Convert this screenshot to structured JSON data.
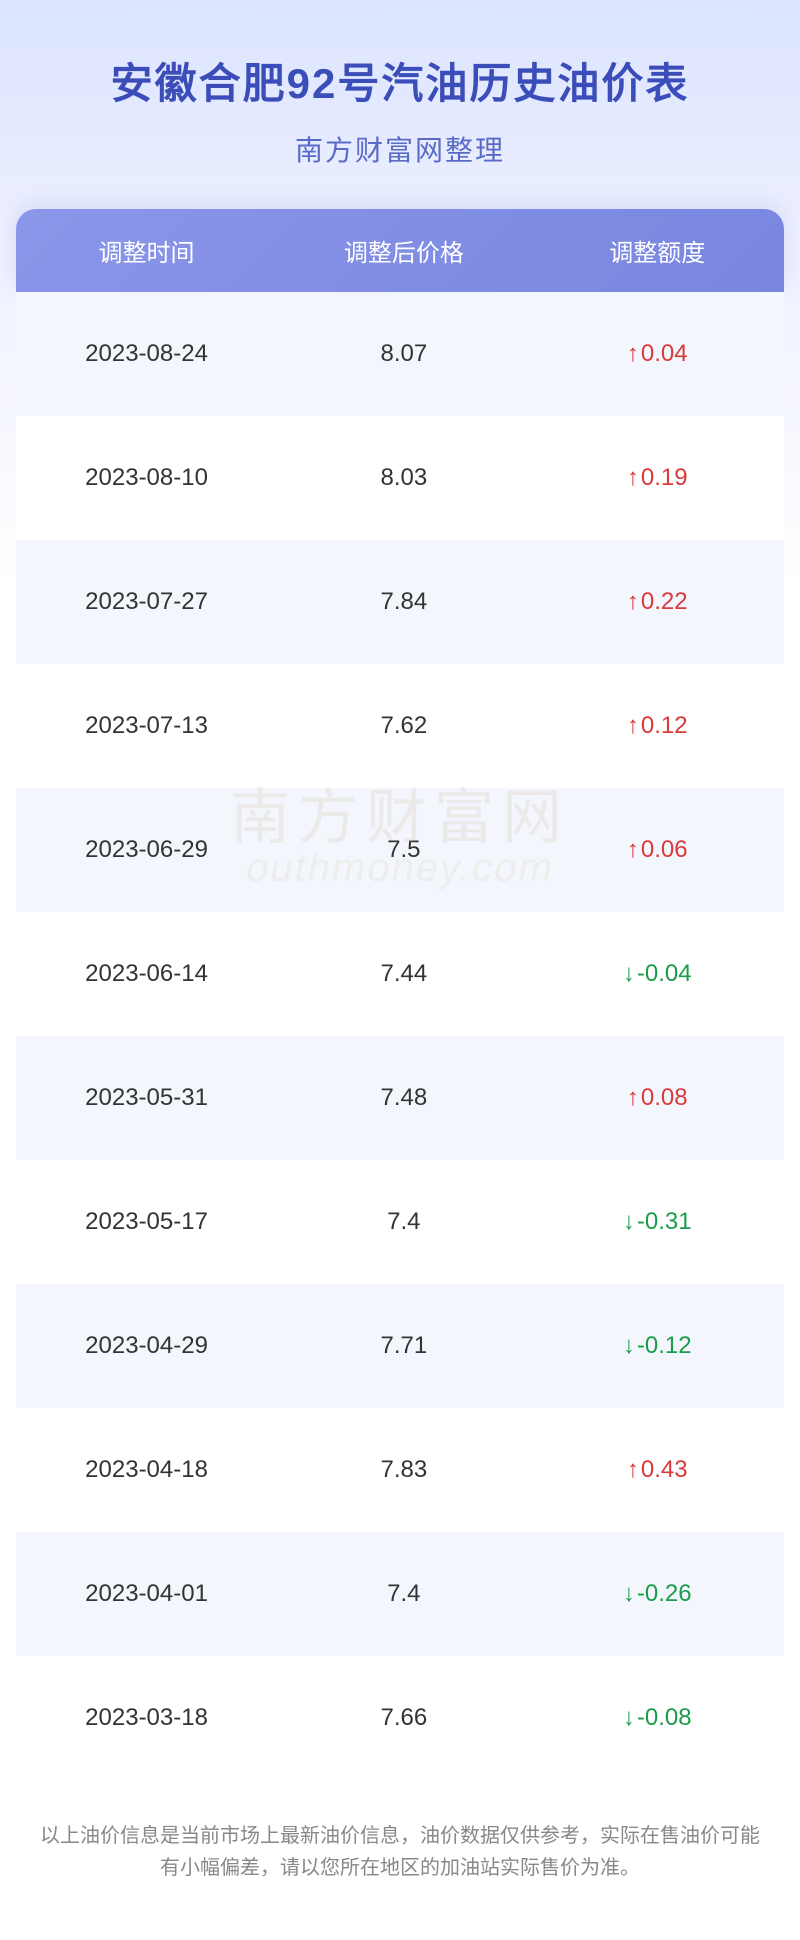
{
  "header": {
    "title": "安徽合肥92号汽油历史油价表",
    "subtitle": "南方财富网整理"
  },
  "table": {
    "columns": {
      "date": "调整时间",
      "price": "调整后价格",
      "change": "调整额度"
    },
    "rows": [
      {
        "date": "2023-08-24",
        "price": "8.07",
        "change": "0.04",
        "direction": "up"
      },
      {
        "date": "2023-08-10",
        "price": "8.03",
        "change": "0.19",
        "direction": "up"
      },
      {
        "date": "2023-07-27",
        "price": "7.84",
        "change": "0.22",
        "direction": "up"
      },
      {
        "date": "2023-07-13",
        "price": "7.62",
        "change": "0.12",
        "direction": "up"
      },
      {
        "date": "2023-06-29",
        "price": "7.5",
        "change": "0.06",
        "direction": "up"
      },
      {
        "date": "2023-06-14",
        "price": "7.44",
        "change": "-0.04",
        "direction": "down"
      },
      {
        "date": "2023-05-31",
        "price": "7.48",
        "change": "0.08",
        "direction": "up"
      },
      {
        "date": "2023-05-17",
        "price": "7.4",
        "change": "-0.31",
        "direction": "down"
      },
      {
        "date": "2023-04-29",
        "price": "7.71",
        "change": "-0.12",
        "direction": "down"
      },
      {
        "date": "2023-04-18",
        "price": "7.83",
        "change": "0.43",
        "direction": "up"
      },
      {
        "date": "2023-04-01",
        "price": "7.4",
        "change": "-0.26",
        "direction": "down"
      },
      {
        "date": "2023-03-18",
        "price": "7.66",
        "change": "-0.08",
        "direction": "down"
      }
    ]
  },
  "arrows": {
    "up": "↑",
    "down": "↓"
  },
  "colors": {
    "up": "#d93a3a",
    "down": "#1a9c4a",
    "title": "#3b4db8",
    "header_bg_start": "#8a96e8",
    "header_bg_end": "#7886e0",
    "row_odd": "#f3f6fc",
    "row_even": "#ffffff"
  },
  "watermark": {
    "line1": "南方财富网",
    "line2": "outhmoney.com"
  },
  "footer": {
    "note": "以上油价信息是当前市场上最新油价信息，油价数据仅供参考，实际在售油价可能有小幅偏差，请以您所在地区的加油站实际售价为准。"
  }
}
